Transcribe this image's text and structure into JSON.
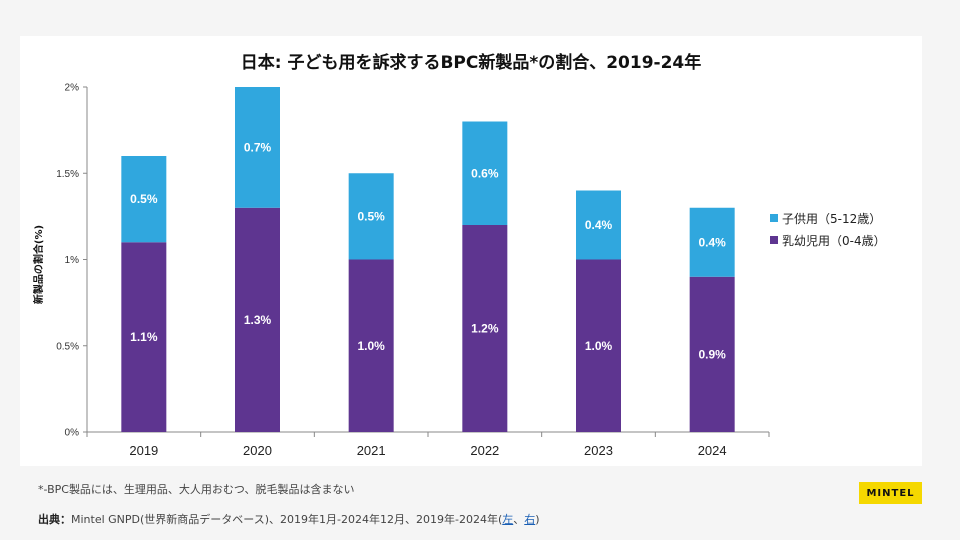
{
  "chart_data": {
    "type": "bar",
    "stacked": true,
    "title": "日本: 子ども用を訴求するBPC新製品*の割合、2019-24年",
    "xlabel": "",
    "ylabel": "新製品の割合(%)",
    "categories": [
      "2019",
      "2020",
      "2021",
      "2022",
      "2023",
      "2024"
    ],
    "series": [
      {
        "name": "乳幼児用（0-4歳）",
        "color": "#5E3590",
        "values": [
          1.1,
          1.3,
          1.0,
          1.2,
          1.0,
          0.9
        ],
        "labels": [
          "1.1%",
          "1.3%",
          "1.0%",
          "1.2%",
          "1.0%",
          "0.9%"
        ]
      },
      {
        "name": "子供用（5-12歳）",
        "color": "#30A7DE",
        "values": [
          0.5,
          0.7,
          0.5,
          0.6,
          0.4,
          0.4
        ],
        "labels": [
          "0.5%",
          "0.7%",
          "0.5%",
          "0.6%",
          "0.4%",
          "0.4%"
        ]
      }
    ],
    "ylim": [
      0,
      2
    ],
    "yticks": [
      0,
      0.5,
      1,
      1.5,
      2
    ],
    "ytick_labels": [
      "0%",
      "0.5%",
      "1%",
      "1.5%",
      "2%"
    ],
    "grid": false,
    "legend_position": "right"
  },
  "legend": {
    "items": [
      {
        "label": "子供用（5-12歳）",
        "color": "#30A7DE"
      },
      {
        "label": "乳幼児用（0-4歳）",
        "color": "#5E3590"
      }
    ]
  },
  "footnote": "*-BPC製品には、生理用品、大人用おむつ、脱毛製品は含まない",
  "source": {
    "label": "出典：",
    "text": "Mintel GNPD(世界新商品データベース)、2019年1月-2024年12月、2019年-2024年(",
    "link_left": "左",
    "separator": "、",
    "link_right": "右",
    "close": ")"
  },
  "brand": "MINTEL"
}
